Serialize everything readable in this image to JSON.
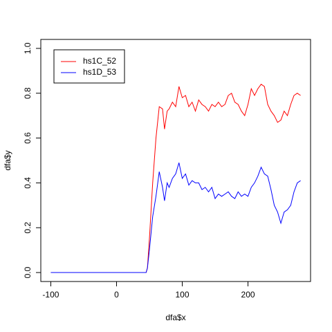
{
  "chart_data": {
    "type": "line",
    "xlabel": "dfa$x",
    "ylabel": "dfa$y",
    "x": [
      -100,
      0,
      45,
      47,
      50,
      55,
      60,
      65,
      70,
      73,
      77,
      80,
      85,
      90,
      95,
      100,
      105,
      110,
      115,
      120,
      125,
      130,
      135,
      140,
      145,
      150,
      155,
      160,
      165,
      170,
      175,
      180,
      185,
      190,
      195,
      200,
      205,
      210,
      215,
      220,
      225,
      230,
      235,
      240,
      245,
      250,
      255,
      260,
      265,
      270,
      275,
      280
    ],
    "series": [
      {
        "name": "hs1C_52",
        "color": "#ff0000",
        "values": [
          0,
          0,
          0,
          0.02,
          0.15,
          0.4,
          0.6,
          0.74,
          0.73,
          0.64,
          0.72,
          0.73,
          0.76,
          0.74,
          0.83,
          0.78,
          0.79,
          0.74,
          0.76,
          0.72,
          0.77,
          0.75,
          0.74,
          0.72,
          0.75,
          0.74,
          0.76,
          0.74,
          0.75,
          0.79,
          0.8,
          0.76,
          0.75,
          0.72,
          0.7,
          0.75,
          0.82,
          0.79,
          0.82,
          0.84,
          0.83,
          0.75,
          0.72,
          0.7,
          0.67,
          0.68,
          0.72,
          0.7,
          0.75,
          0.79,
          0.8,
          0.79
        ]
      },
      {
        "name": "hs1D_53",
        "color": "#0000ff",
        "values": [
          0,
          0,
          0,
          0.02,
          0.1,
          0.25,
          0.34,
          0.45,
          0.38,
          0.32,
          0.4,
          0.38,
          0.42,
          0.44,
          0.49,
          0.42,
          0.44,
          0.39,
          0.41,
          0.4,
          0.4,
          0.37,
          0.38,
          0.36,
          0.38,
          0.33,
          0.35,
          0.34,
          0.35,
          0.36,
          0.34,
          0.33,
          0.36,
          0.34,
          0.35,
          0.34,
          0.38,
          0.4,
          0.43,
          0.47,
          0.44,
          0.43,
          0.37,
          0.3,
          0.27,
          0.22,
          0.27,
          0.28,
          0.3,
          0.36,
          0.4,
          0.41
        ]
      }
    ],
    "xlim": [
      -115.2,
      295.2
    ],
    "xticks": [
      -100,
      0,
      100,
      200
    ],
    "ylim": [
      -0.04,
      1.04
    ],
    "yticks": [
      {
        "value": 0,
        "label": "0.0"
      },
      0.2,
      0.4,
      0.6,
      0.8,
      {
        "value": 1,
        "label": "1.0"
      }
    ],
    "legend": "top-left",
    "grid": false
  }
}
